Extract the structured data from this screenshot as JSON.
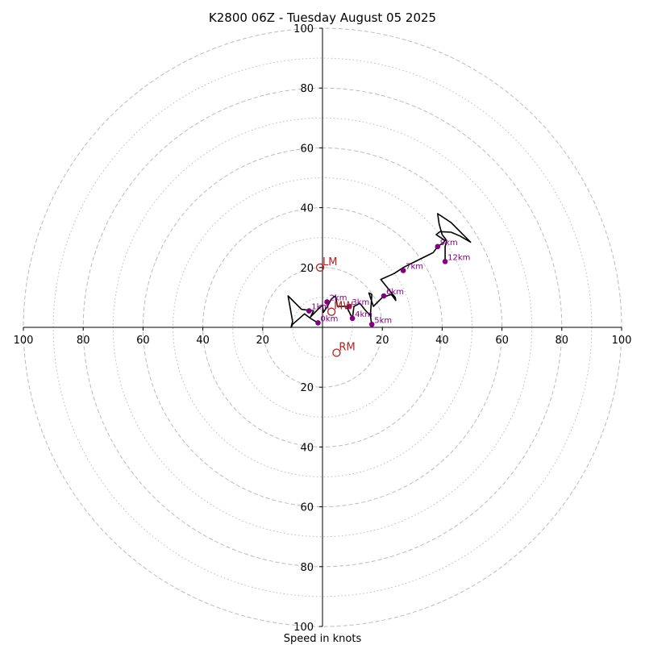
{
  "chart_data": {
    "type": "hodograph",
    "title": "K2800 06Z - Tuesday August 05 2025",
    "xlabel": "Speed in knots",
    "ylabel": "",
    "xlim": [
      -100,
      100
    ],
    "ylim": [
      -100,
      100
    ],
    "ring_major": [
      20,
      40,
      60,
      80,
      100
    ],
    "ring_minor": [
      10,
      30,
      50,
      70,
      90
    ],
    "x_ticks": [
      {
        "value": -100,
        "label": "100"
      },
      {
        "value": -80,
        "label": "80"
      },
      {
        "value": -60,
        "label": "60"
      },
      {
        "value": -40,
        "label": "40"
      },
      {
        "value": -20,
        "label": "20"
      },
      {
        "value": 20,
        "label": "20"
      },
      {
        "value": 40,
        "label": "40"
      },
      {
        "value": 60,
        "label": "60"
      },
      {
        "value": 80,
        "label": "80"
      },
      {
        "value": 100,
        "label": "100"
      }
    ],
    "y_ticks": [
      {
        "value": 100,
        "label": "100"
      },
      {
        "value": 80,
        "label": "80"
      },
      {
        "value": 60,
        "label": "60"
      },
      {
        "value": 40,
        "label": "40"
      },
      {
        "value": 20,
        "label": "20"
      },
      {
        "value": -20,
        "label": "20"
      },
      {
        "value": -40,
        "label": "40"
      },
      {
        "value": -60,
        "label": "60"
      },
      {
        "value": -80,
        "label": "80"
      },
      {
        "value": -100,
        "label": "100"
      }
    ],
    "trace": [
      [
        -1.5,
        1.5
      ],
      [
        -4,
        3
      ],
      [
        -6,
        4.5
      ],
      [
        -10,
        1
      ],
      [
        -10.5,
        0
      ],
      [
        -10,
        2
      ],
      [
        -11.5,
        10.5
      ],
      [
        -7,
        6
      ],
      [
        -3,
        5.5
      ],
      [
        -4,
        3.5
      ],
      [
        -1.5,
        6
      ],
      [
        0,
        7.5
      ],
      [
        0.3,
        5
      ],
      [
        1.5,
        6.8
      ],
      [
        3,
        9.5
      ],
      [
        4.3,
        10.5
      ],
      [
        5,
        7
      ],
      [
        8,
        7
      ],
      [
        9,
        5
      ],
      [
        10,
        3
      ],
      [
        10.5,
        7
      ],
      [
        12.5,
        8
      ],
      [
        14.5,
        5.5
      ],
      [
        16,
        4
      ],
      [
        16.5,
        0.5
      ],
      [
        16,
        4
      ],
      [
        16.5,
        11
      ],
      [
        15.5,
        11.5
      ],
      [
        16,
        10
      ],
      [
        17,
        7
      ],
      [
        20,
        10
      ],
      [
        23,
        11
      ],
      [
        24.5,
        9
      ],
      [
        24.3,
        10
      ],
      [
        19.5,
        16
      ],
      [
        24,
        18
      ],
      [
        27,
        20
      ],
      [
        31,
        22
      ],
      [
        35,
        24
      ],
      [
        37,
        25
      ],
      [
        38.5,
        27
      ],
      [
        40,
        28
      ],
      [
        41,
        29
      ],
      [
        38,
        31
      ],
      [
        39.3,
        32
      ],
      [
        43,
        31.8
      ],
      [
        46,
        30.5
      ],
      [
        49.5,
        28.5
      ],
      [
        46,
        32
      ],
      [
        43,
        35
      ],
      [
        38.5,
        38
      ],
      [
        39,
        34.5
      ],
      [
        40,
        31
      ],
      [
        41.5,
        29
      ],
      [
        41,
        27
      ],
      [
        41,
        22
      ]
    ],
    "height_points": [
      {
        "label": "0km",
        "u": -1.5,
        "v": 1.5
      },
      {
        "label": "1km",
        "u": -4.5,
        "v": 5.5
      },
      {
        "label": "2km",
        "u": 1.5,
        "v": 8.5
      },
      {
        "label": "3km",
        "u": 9,
        "v": 7
      },
      {
        "label": "4km",
        "u": 10,
        "v": 3
      },
      {
        "label": "5km",
        "u": 16.5,
        "v": 1
      },
      {
        "label": "6km",
        "u": 20.5,
        "v": 10.5
      },
      {
        "label": "7km",
        "u": 27,
        "v": 19
      },
      {
        "label": "9km",
        "u": 38.5,
        "v": 27
      },
      {
        "label": "12km",
        "u": 41,
        "v": 22
      }
    ],
    "motion_markers": [
      {
        "label": "LM",
        "u": -0.8,
        "v": 20
      },
      {
        "label": "MW",
        "u": 3,
        "v": 5.2
      },
      {
        "label": "RM",
        "u": 4.7,
        "v": -8.5
      }
    ],
    "colors": {
      "trace": "#000000",
      "height_points": "#800080",
      "motion_markers": "#b22222",
      "rings": "#bbbbbb",
      "axes": "#000000"
    },
    "grid": true
  }
}
